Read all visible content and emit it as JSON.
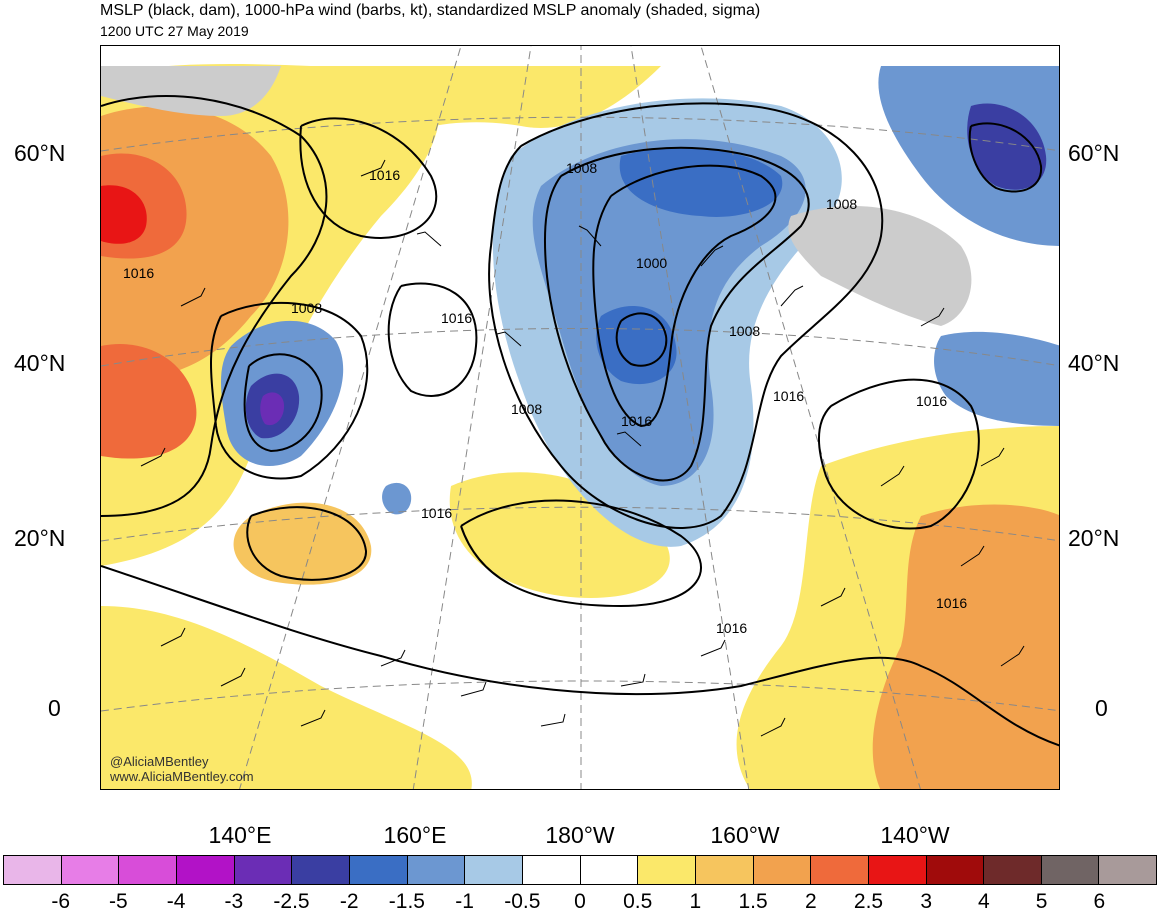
{
  "header": {
    "title": "MSLP (black, dam), 1000-hPa wind (barbs, kt), standardized MSLP anomaly (shaded, sigma)",
    "valid_time": "1200 UTC 27 May 2019"
  },
  "latitude_labels": [
    "60°N",
    "40°N",
    "20°N",
    "0"
  ],
  "longitude_labels": [
    "140°E",
    "160°E",
    "180°W",
    "160°W",
    "140°W"
  ],
  "isobar_labels": [
    "1016",
    "1016",
    "1008",
    "1016",
    "1008",
    "1016",
    "1008",
    "1000",
    "1008",
    "1008",
    "1016",
    "1016",
    "1016",
    "1016",
    "1016"
  ],
  "credits": {
    "handle": "@AliciaMBentley",
    "website": "www.AliciaMBentley.com"
  },
  "colorbar": {
    "colors": [
      "#e9b6e9",
      "#e77de7",
      "#d84dd9",
      "#b212c7",
      "#6b2db5",
      "#3a3ea2",
      "#3a6ec4",
      "#6c97d1",
      "#a7c9e6",
      "#ffffff",
      "#ffffff",
      "#fbe86a",
      "#f6c55e",
      "#f2a24e",
      "#ef6a3b",
      "#e81515",
      "#a00b0b",
      "#6e2a2a",
      "#706464",
      "#a89a9a"
    ],
    "tick_labels": [
      "-6",
      "-5",
      "-4",
      "-3",
      "-2.5",
      "-2",
      "-1.5",
      "-1",
      "-0.5",
      "0",
      "0.5",
      "1",
      "1.5",
      "2",
      "2.5",
      "3",
      "4",
      "5",
      "6"
    ]
  }
}
